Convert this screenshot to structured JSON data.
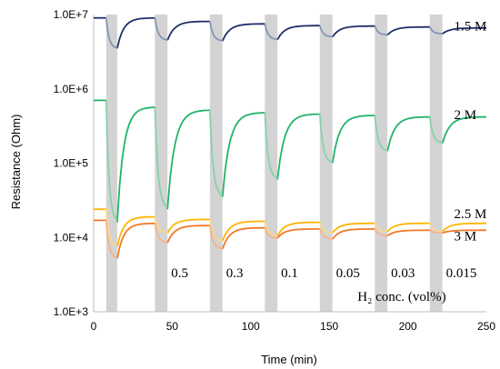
{
  "chart_data": {
    "type": "line",
    "xlabel": "Time (min)",
    "ylabel": "Resistance (Ohm)",
    "xlim": [
      0,
      250
    ],
    "ylim": [
      1000,
      10000000
    ],
    "yscale": "log",
    "xticks": [
      "0",
      "50",
      "100",
      "150",
      "200",
      "250"
    ],
    "yticks": [
      "1.0E+3",
      "1.0E+4",
      "1.0E+5",
      "1.0E+6",
      "1.0E+7"
    ],
    "grid": false,
    "h2_exposure_windows_min": [
      [
        8,
        15
      ],
      [
        39,
        47
      ],
      [
        74,
        82
      ],
      [
        109,
        117
      ],
      [
        144,
        152
      ],
      [
        179,
        187
      ],
      [
        214,
        222
      ]
    ],
    "concentration_label": "H₂ conc. (vol%)",
    "concentrations": [
      "0.5",
      "0.3",
      "0.1",
      "0.05",
      "0.03",
      "0.015"
    ],
    "series": [
      {
        "name": "1.5 M",
        "color": "#1f2e6b",
        "color_exposed": "#8296b4",
        "baseline": [
          9000000,
          9000000,
          8100000,
          7500000,
          7100000,
          7000000,
          6800000,
          6600000
        ],
        "minimum": [
          3500000,
          4500000,
          4400000,
          4600000,
          5000000,
          5300000,
          5500000
        ]
      },
      {
        "name": "2 M",
        "color": "#22b36a",
        "color_exposed": "#88d2a8",
        "baseline": [
          700000,
          570000,
          520000,
          480000,
          460000,
          440000,
          420000,
          420000
        ],
        "minimum": [
          16000,
          24000,
          35000,
          60000,
          100000,
          145000,
          185000
        ]
      },
      {
        "name": "2.5 M",
        "color": "#ffb400",
        "color_exposed": "#fad78c",
        "baseline": [
          24000,
          19000,
          17500,
          16500,
          16000,
          15500,
          15500,
          15500
        ],
        "minimum": [
          7500,
          11500,
          9000,
          10500,
          11500,
          12000,
          12000
        ]
      },
      {
        "name": "3 M",
        "color": "#f07828",
        "color_exposed": "#f5b48c",
        "baseline": [
          17000,
          15500,
          14500,
          13500,
          13000,
          13000,
          12500,
          12500
        ],
        "minimum": [
          5200,
          8500,
          7000,
          9800,
          9500,
          10500,
          11500
        ]
      }
    ],
    "annotations": [
      {
        "text": "1.5 M",
        "x": 226,
        "y": 7000000
      },
      {
        "text": "2 M",
        "x": 226,
        "y": 450000
      },
      {
        "text": "2.5 M",
        "x": 226,
        "y": 21000
      },
      {
        "text": "3 M",
        "x": 226,
        "y": 10500
      }
    ]
  }
}
